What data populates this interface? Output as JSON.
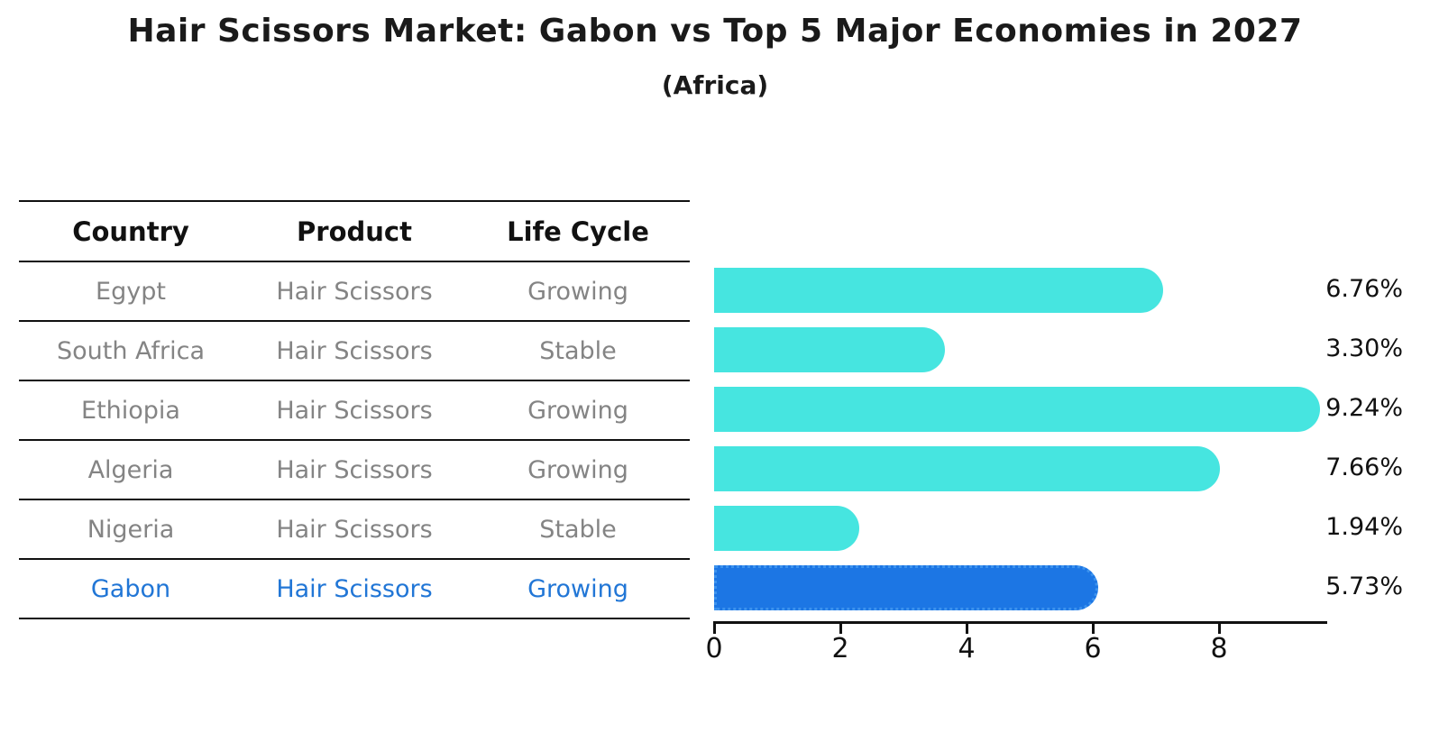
{
  "chart": {
    "title": "Hair Scissors Market: Gabon vs Top 5 Major Economies in 2027",
    "subtitle": "(Africa)"
  },
  "table": {
    "headers": [
      "Country",
      "Product",
      "Life Cycle"
    ],
    "rows": [
      {
        "country": "Egypt",
        "product": "Hair Scissors",
        "life_cycle": "Growing",
        "highlight": false
      },
      {
        "country": "South Africa",
        "product": "Hair Scissors",
        "life_cycle": "Stable",
        "highlight": false
      },
      {
        "country": "Ethiopia",
        "product": "Hair Scissors",
        "life_cycle": "Growing",
        "highlight": false
      },
      {
        "country": "Algeria",
        "product": "Hair Scissors",
        "life_cycle": "Growing",
        "highlight": false
      },
      {
        "country": "Nigeria",
        "product": "Hair Scissors",
        "life_cycle": "Stable",
        "highlight": false
      },
      {
        "country": "Gabon",
        "product": "Hair Scissors",
        "life_cycle": "Growing",
        "highlight": true
      }
    ]
  },
  "chart_data": {
    "type": "bar",
    "orientation": "horizontal",
    "title": "Hair Scissors Market: Gabon vs Top 5 Major Economies in 2027",
    "subtitle": "(Africa)",
    "categories": [
      "Egypt",
      "South Africa",
      "Ethiopia",
      "Algeria",
      "Nigeria",
      "Gabon"
    ],
    "values": [
      6.76,
      3.3,
      9.24,
      7.66,
      1.94,
      5.73
    ],
    "value_labels": [
      "6.76%",
      "3.30%",
      "9.24%",
      "7.66%",
      "1.94%",
      "5.73%"
    ],
    "x_ticks": [
      0,
      2,
      4,
      6,
      8
    ],
    "xlim": [
      0,
      9.7
    ],
    "grid": false,
    "legend": "none",
    "highlight_index": 5,
    "bar_color": "#46e5e0",
    "highlight_color": "#1c76e4",
    "highlight_border_color": "#3d93ee",
    "highlight_text_color": "#2176d6",
    "row_text_color": "#848484",
    "axis_color": "#111111"
  }
}
